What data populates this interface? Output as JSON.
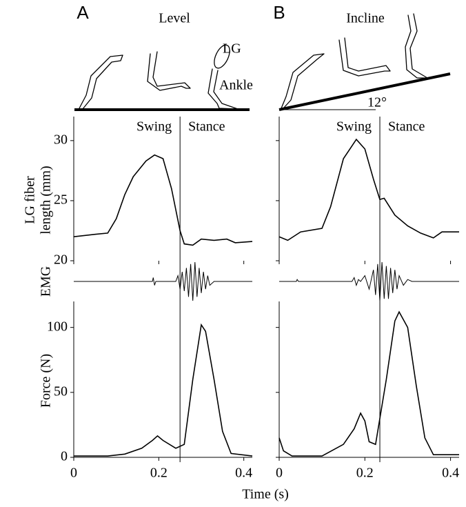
{
  "panels": [
    {
      "letter": "A",
      "title": "Level",
      "annotations": [
        "LG",
        "Ankle"
      ],
      "swing": "Swing",
      "stance": "Stance",
      "stance_onset": 0.25
    },
    {
      "letter": "B",
      "title": "Incline",
      "angle": "12°",
      "swing": "Swing",
      "stance": "Stance",
      "stance_onset": 0.235
    }
  ],
  "chart_data": [
    {
      "type": "line",
      "ylabel": [
        "LG fiber",
        "length (mm)"
      ],
      "color": "#000000",
      "x": [
        0,
        0.05,
        0.08,
        0.1,
        0.12,
        0.14,
        0.17,
        0.19,
        0.21,
        0.23,
        0.25,
        0.26,
        0.28,
        0.3,
        0.33,
        0.36,
        0.38,
        0.42
      ],
      "values": [
        22,
        22.2,
        22.3,
        23.5,
        25.5,
        27,
        28.3,
        28.8,
        28.5,
        26,
        22.5,
        21.4,
        21.3,
        21.8,
        21.7,
        21.8,
        21.5,
        21.6
      ],
      "xlim": [
        0,
        0.42
      ],
      "ylim": [
        20,
        32
      ],
      "yticks": [
        20,
        25,
        30
      ]
    },
    {
      "type": "line",
      "color": "#000000",
      "x": [
        0,
        0.02,
        0.05,
        0.1,
        0.12,
        0.15,
        0.18,
        0.2,
        0.22,
        0.235,
        0.245,
        0.27,
        0.3,
        0.33,
        0.36,
        0.38,
        0.42
      ],
      "values": [
        22,
        21.7,
        22.4,
        22.7,
        24.5,
        28.5,
        30.1,
        29.3,
        26.8,
        25.1,
        25.2,
        23.8,
        22.9,
        22.3,
        21.9,
        22.4,
        22.4
      ],
      "xlim": [
        0,
        0.42
      ],
      "ylim": [
        20,
        32
      ]
    },
    {
      "type": "line",
      "ylabel": "EMG",
      "color": "#000000",
      "x": [
        0,
        0.185,
        0.187,
        0.19,
        0.193,
        0.24,
        0.245,
        0.25,
        0.255,
        0.26,
        0.265,
        0.27,
        0.275,
        0.28,
        0.285,
        0.29,
        0.295,
        0.3,
        0.305,
        0.31,
        0.315,
        0.32,
        0.33,
        0.42
      ],
      "values": [
        0,
        0,
        0.2,
        -0.2,
        0,
        0,
        0.3,
        -0.4,
        0.5,
        -0.5,
        0.7,
        -0.8,
        0.9,
        -1,
        1,
        -0.8,
        0.7,
        -0.6,
        0.5,
        -0.4,
        0.3,
        -0.2,
        0,
        0
      ],
      "xlim": [
        0,
        0.42
      ],
      "ylim": [
        -1,
        1
      ]
    },
    {
      "type": "line",
      "color": "#000000",
      "x": [
        0,
        0.04,
        0.042,
        0.045,
        0.17,
        0.175,
        0.18,
        0.185,
        0.19,
        0.2,
        0.21,
        0.22,
        0.225,
        0.23,
        0.235,
        0.24,
        0.245,
        0.25,
        0.255,
        0.26,
        0.265,
        0.27,
        0.275,
        0.28,
        0.29,
        0.3,
        0.31,
        0.42
      ],
      "values": [
        0,
        0,
        0.1,
        0,
        0,
        0.2,
        -0.2,
        0.1,
        0,
        0.3,
        -0.4,
        0.6,
        -0.7,
        0.9,
        -1,
        1,
        -0.9,
        0.8,
        -0.9,
        0.7,
        -0.6,
        0.6,
        -0.4,
        0.3,
        -0.2,
        0.1,
        0,
        0
      ],
      "xlim": [
        0,
        0.42
      ],
      "ylim": [
        -1,
        1
      ]
    },
    {
      "type": "line",
      "ylabel": "Force (N)",
      "xlabel": "Time (s)",
      "color": "#000000",
      "x": [
        0,
        0.08,
        0.12,
        0.16,
        0.185,
        0.197,
        0.21,
        0.24,
        0.26,
        0.28,
        0.3,
        0.31,
        0.33,
        0.35,
        0.37,
        0.42
      ],
      "values": [
        1,
        1,
        2.5,
        7,
        13,
        16.5,
        13,
        7,
        10,
        60,
        102,
        97,
        60,
        20,
        3,
        1
      ],
      "xlim": [
        0,
        0.42
      ],
      "ylim": [
        0,
        120
      ],
      "yticks": [
        0,
        50,
        100
      ],
      "xticks": [
        0,
        0.2,
        0.4
      ]
    },
    {
      "type": "line",
      "color": "#000000",
      "x": [
        0,
        0.01,
        0.03,
        0.1,
        0.15,
        0.175,
        0.19,
        0.2,
        0.21,
        0.225,
        0.25,
        0.27,
        0.28,
        0.3,
        0.32,
        0.34,
        0.36,
        0.42
      ],
      "values": [
        15,
        5,
        1,
        1,
        10,
        22,
        34,
        28,
        12,
        10,
        60,
        105,
        112,
        100,
        55,
        15,
        2,
        2
      ],
      "xlim": [
        0,
        0.42
      ],
      "ylim": [
        0,
        120
      ]
    }
  ]
}
